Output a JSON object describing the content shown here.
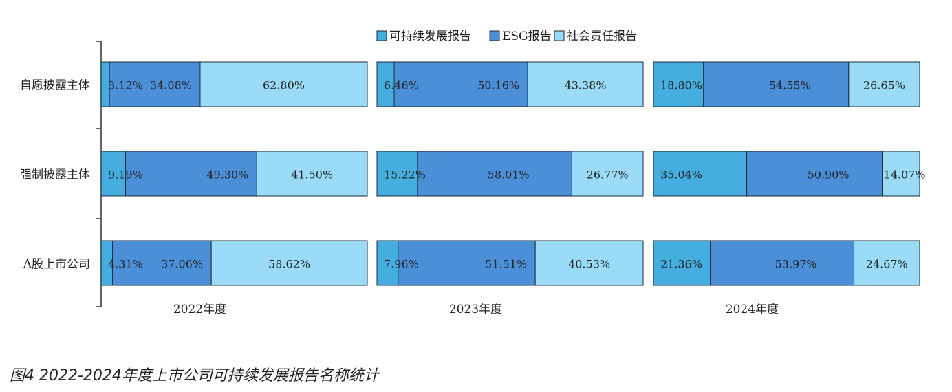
{
  "caption": "图4 2022-2024年度上市公司可持续发展报告名称统计",
  "colors": {
    "sustainability": "#45ADE0",
    "esg": "#4B8FD8",
    "csr": "#9ADCF7",
    "stroke": "#1e2a36",
    "axis": "#333333"
  },
  "chart_data": {
    "type": "bar",
    "stacked": "percent",
    "orientation": "horizontal",
    "legend_position": "top",
    "categories": [
      "自愿披露主体",
      "强制披露主体",
      "A股上市公司"
    ],
    "panels": [
      {
        "label": "2022年度",
        "series": [
          {
            "name": "可持续发展报告",
            "values": [
              3.12,
              9.19,
              4.31
            ],
            "labels": [
              "3.12%",
              "9.19%",
              "4.31%"
            ]
          },
          {
            "name": "ESG报告",
            "values": [
              34.08,
              49.3,
              37.06
            ],
            "labels": [
              "34.08%",
              "49.30%",
              "37.06%"
            ]
          },
          {
            "name": "社会责任报告",
            "values": [
              62.8,
              41.5,
              58.62
            ],
            "labels": [
              "62.80%",
              "41.50%",
              "58.62%"
            ]
          }
        ]
      },
      {
        "label": "2023年度",
        "series": [
          {
            "name": "可持续发展报告",
            "values": [
              6.46,
              15.22,
              7.96
            ],
            "labels": [
              "6.46%",
              "15.22%",
              "7.96%"
            ]
          },
          {
            "name": "ESG报告",
            "values": [
              50.16,
              58.01,
              51.51
            ],
            "labels": [
              "50.16%",
              "58.01%",
              "51.51%"
            ]
          },
          {
            "name": "社会责任报告",
            "values": [
              43.38,
              26.77,
              40.53
            ],
            "labels": [
              "43.38%",
              "26.77%",
              "40.53%"
            ]
          }
        ]
      },
      {
        "label": "2024年度",
        "series": [
          {
            "name": "可持续发展报告",
            "values": [
              18.8,
              35.04,
              21.36
            ],
            "labels": [
              "18.80%",
              "35.04%",
              "21.36%"
            ]
          },
          {
            "name": "ESG报告",
            "values": [
              54.55,
              50.9,
              53.97
            ],
            "labels": [
              "54.55%",
              "50.90%",
              "53.97%"
            ]
          },
          {
            "name": "社会责任报告",
            "values": [
              26.65,
              14.07,
              24.67
            ],
            "labels": [
              "26.65%",
              "14.07%",
              "24.67%"
            ]
          }
        ]
      }
    ]
  }
}
